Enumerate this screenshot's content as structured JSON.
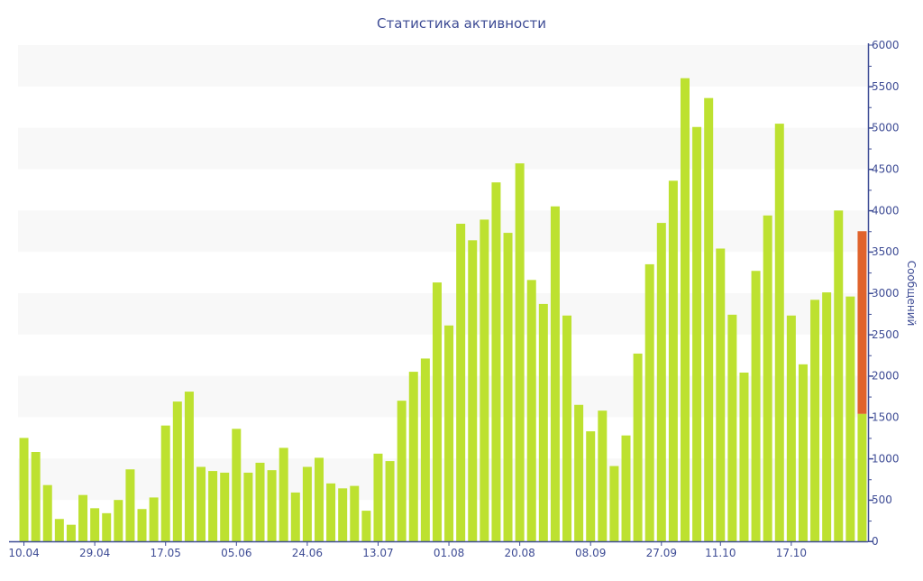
{
  "chart_data": {
    "type": "bar",
    "title": "Статистика активности",
    "ylabel": "Сообщений",
    "xlabel": "",
    "ylim": [
      0,
      6000
    ],
    "yticks": [
      0,
      500,
      1000,
      1500,
      2000,
      2500,
      3000,
      3500,
      4000,
      4500,
      5000,
      5500,
      6000
    ],
    "grid": "alternating horizontal bands",
    "y_axis_position": "right",
    "xticks": [
      {
        "label": "10.04",
        "index": 0
      },
      {
        "label": "29.04",
        "index": 6
      },
      {
        "label": "17.05",
        "index": 12
      },
      {
        "label": "05.06",
        "index": 18
      },
      {
        "label": "24.06",
        "index": 24
      },
      {
        "label": "13.07",
        "index": 30
      },
      {
        "label": "01.08",
        "index": 36
      },
      {
        "label": "20.08",
        "index": 42
      },
      {
        "label": "08.09",
        "index": 48
      },
      {
        "label": "27.09",
        "index": 54
      },
      {
        "label": "11.10",
        "index": 59
      },
      {
        "label": "17.10",
        "index": 65
      }
    ],
    "values": [
      1250,
      1080,
      680,
      270,
      200,
      560,
      400,
      340,
      500,
      870,
      390,
      530,
      1400,
      1690,
      1810,
      900,
      850,
      830,
      1360,
      830,
      950,
      860,
      1130,
      590,
      900,
      1010,
      700,
      640,
      670,
      370,
      1060,
      970,
      1700,
      2050,
      2210,
      3130,
      2610,
      3840,
      3640,
      3890,
      4340,
      3730,
      4570,
      3160,
      2870,
      4050,
      2730,
      1650,
      1330,
      1580,
      910,
      1280,
      2270,
      3350,
      3850,
      4360,
      5600,
      5010,
      5360,
      3540,
      2740,
      2040,
      3270,
      3940,
      5050,
      2730,
      2140,
      2920,
      3010,
      4000,
      2960,
      1540
    ],
    "last_bar_projection_total": 3750,
    "colors": {
      "bar": "#bde130",
      "projection": "#e0632c",
      "axis": "#3e4c95",
      "band": "#f8f8f8"
    }
  }
}
